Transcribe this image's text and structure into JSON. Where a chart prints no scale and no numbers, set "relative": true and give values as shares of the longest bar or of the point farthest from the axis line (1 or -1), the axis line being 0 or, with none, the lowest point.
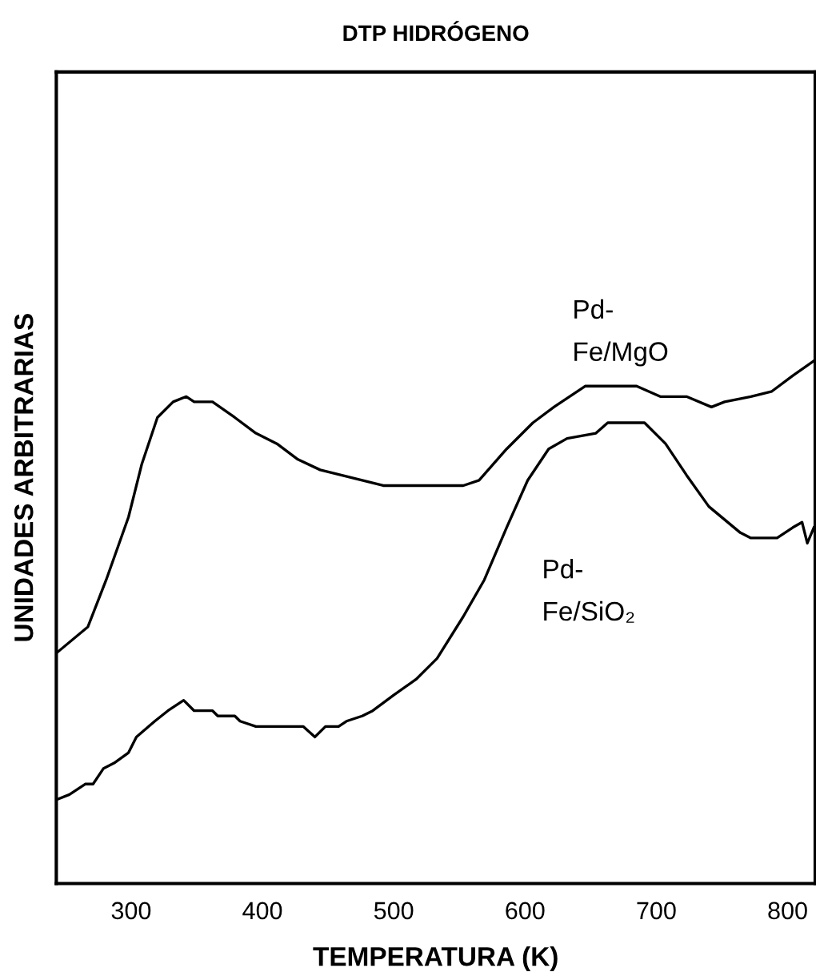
{
  "chart_data": {
    "type": "line",
    "title": "DTP HIDRÓGENO",
    "xlabel": "TEMPERATURA (K)",
    "ylabel": "UNIDADES ARBITRARIAS",
    "relative": true,
    "xlim": [
      243,
      821
    ],
    "xticks": [
      300,
      400,
      500,
      600,
      700,
      800
    ],
    "grid": false,
    "legend": false,
    "marker": "none",
    "line_style": "solid",
    "series": [
      {
        "name": "Pd-\nFe/MgO",
        "color": "#000000",
        "x": [
          243,
          267,
          281,
          298,
          308,
          320,
          332,
          342,
          348,
          362,
          379,
          395,
          411,
          427,
          444,
          460,
          476,
          492,
          553,
          565,
          586,
          606,
          622,
          646,
          685,
          703,
          723,
          742,
          752,
          772,
          788,
          804,
          821
        ],
        "values": [
          0.44,
          0.49,
          0.58,
          0.7,
          0.8,
          0.89,
          0.92,
          0.93,
          0.92,
          0.92,
          0.89,
          0.86,
          0.84,
          0.81,
          0.79,
          0.78,
          0.77,
          0.76,
          0.76,
          0.77,
          0.83,
          0.88,
          0.91,
          0.95,
          0.95,
          0.93,
          0.93,
          0.91,
          0.92,
          0.93,
          0.94,
          0.97,
          1.0
        ]
      },
      {
        "name": "Pd-\nFe/SiO₂",
        "color": "#000000",
        "x": [
          243,
          253,
          259,
          265,
          271,
          279,
          287,
          298,
          304,
          318,
          328,
          340,
          348,
          362,
          366,
          379,
          383,
          395,
          431,
          440,
          448,
          458,
          464,
          476,
          484,
          500,
          517,
          533,
          553,
          569,
          586,
          602,
          618,
          632,
          654,
          663,
          691,
          707,
          723,
          740,
          764,
          772,
          792,
          804,
          811,
          815,
          820
        ],
        "values": [
          0.16,
          0.17,
          0.18,
          0.19,
          0.19,
          0.22,
          0.23,
          0.25,
          0.28,
          0.31,
          0.33,
          0.35,
          0.33,
          0.33,
          0.32,
          0.32,
          0.31,
          0.3,
          0.3,
          0.28,
          0.3,
          0.3,
          0.31,
          0.32,
          0.33,
          0.36,
          0.39,
          0.43,
          0.51,
          0.58,
          0.68,
          0.77,
          0.83,
          0.85,
          0.86,
          0.88,
          0.88,
          0.84,
          0.78,
          0.72,
          0.67,
          0.66,
          0.66,
          0.68,
          0.69,
          0.65,
          0.68
        ]
      }
    ]
  }
}
